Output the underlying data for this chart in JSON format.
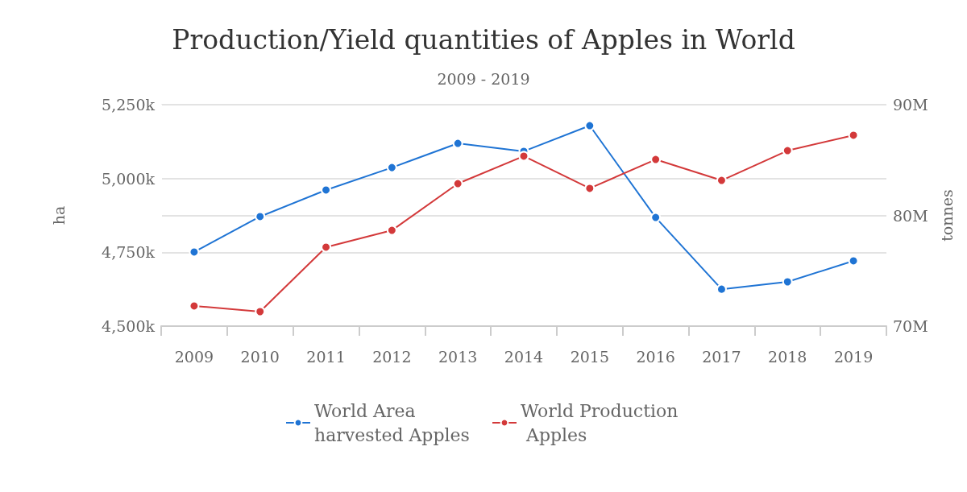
{
  "chart_data": {
    "type": "line",
    "title": "Production/Yield quantities of Apples in World",
    "subtitle": "2009 - 2019",
    "ylabel": "ha",
    "y2label": "tonnes",
    "categories": [
      "2009",
      "2010",
      "2011",
      "2012",
      "2013",
      "2014",
      "2015",
      "2016",
      "2017",
      "2018",
      "2019"
    ],
    "series": [
      {
        "name": "World Area harvested Apples",
        "color": "#1f74d4",
        "axis": "y",
        "values": [
          4751000,
          4871000,
          4961000,
          5037000,
          5119000,
          5092000,
          5179000,
          4868000,
          4625000,
          4650000,
          4721000
        ]
      },
      {
        "name": "World Production Apples",
        "color": "#d3393a",
        "axis": "y2",
        "values": [
          71820000,
          71310000,
          77130000,
          78650000,
          82870000,
          85350000,
          82440000,
          85050000,
          83160000,
          85850000,
          87240000
        ]
      }
    ],
    "ylim": [
      4500000,
      5250000
    ],
    "yticks": [
      {
        "value": 4500000,
        "label": "4,500k"
      },
      {
        "value": 4750000,
        "label": "4,750k"
      },
      {
        "value": 5000000,
        "label": "5,000k"
      },
      {
        "value": 5250000,
        "label": "5,250k"
      }
    ],
    "y2lim": [
      70000000,
      90000000
    ],
    "y2ticks": [
      {
        "value": 70000000,
        "label": "70M"
      },
      {
        "value": 80000000,
        "label": "80M"
      },
      {
        "value": 90000000,
        "label": "90M"
      }
    ],
    "grid": "y",
    "legend": "bottom",
    "marker": "circle",
    "line_style": "solid"
  }
}
